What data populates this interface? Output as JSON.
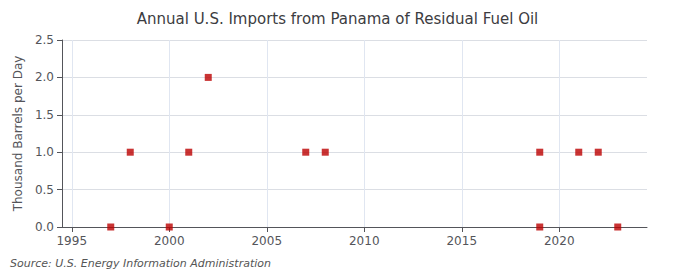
{
  "chart_data": {
    "type": "scatter",
    "title": "Annual U.S. Imports from Panama of Residual Fuel Oil",
    "ylabel": "Thousand Barrels per Day",
    "source": "Source: U.S. Energy Information Administration",
    "xlim": [
      1994.5,
      2024.5
    ],
    "xticks": [
      1995,
      2000,
      2005,
      2010,
      2015,
      2020
    ],
    "ylim": [
      0.0,
      2.5
    ],
    "yticks": [
      {
        "value": 0.0,
        "label": "0.0"
      },
      {
        "value": 0.5,
        "label": "0.5"
      },
      {
        "value": 1.0,
        "label": "1.0"
      },
      {
        "value": 1.5,
        "label": "1.5"
      },
      {
        "value": 2.0,
        "label": "2.0"
      },
      {
        "value": 2.5,
        "label": "2.5"
      }
    ],
    "grid": true,
    "series": [
      {
        "color": "#bb0000",
        "marker": "square",
        "x": [
          1997,
          1998,
          2000,
          2001,
          2007,
          2008,
          2019,
          2019,
          2021,
          2022,
          2023
        ],
        "values": [
          0.0,
          1.0,
          0.0,
          1.0,
          1.0,
          1.0,
          0.0,
          1.0,
          1.0,
          1.0,
          0.0
        ]
      },
      {
        "color": "#bb0000",
        "marker": "square",
        "x": [
          2002
        ],
        "values": [
          2.0
        ]
      }
    ]
  }
}
